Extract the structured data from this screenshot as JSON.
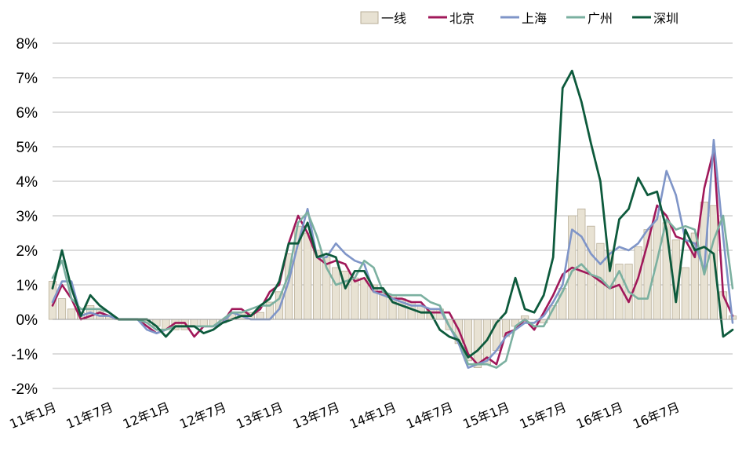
{
  "chart_data": {
    "type": "bar+line",
    "title": "",
    "xlabel": "",
    "ylabel": "",
    "ylim": [
      -2,
      8
    ],
    "y_ticks": [
      "8%",
      "7%",
      "6%",
      "5%",
      "4%",
      "3%",
      "2%",
      "1%",
      "0%",
      "-1%",
      "-2%"
    ],
    "y_tick_values": [
      8,
      7,
      6,
      5,
      4,
      3,
      2,
      1,
      0,
      -1,
      -2
    ],
    "x_tick_labels": [
      "11年1月",
      "11年7月",
      "12年1月",
      "12年7月",
      "13年1月",
      "13年7月",
      "14年1月",
      "14年7月",
      "15年1月",
      "15年7月",
      "16年1月",
      "16年7月"
    ],
    "x_tick_index": [
      0,
      6,
      12,
      18,
      24,
      30,
      36,
      42,
      48,
      54,
      60,
      66
    ],
    "grid": "horizontal",
    "legend_position": "top",
    "colors": {
      "一线": "#e8e2d3",
      "一线_edge": "#b8ae97",
      "北京": "#a0185a",
      "上海": "#7f95c8",
      "广州": "#7bb0a0",
      "深圳": "#0d5a3c"
    },
    "bar_series": {
      "name": "一线",
      "values": [
        1.1,
        0.6,
        0.3,
        0.2,
        0.4,
        0.3,
        0.1,
        0.0,
        0.0,
        0.0,
        -0.1,
        -0.2,
        -0.3,
        -0.3,
        -0.3,
        -0.2,
        -0.2,
        -0.2,
        -0.1,
        0.2,
        0.2,
        0.2,
        0.2,
        0.5,
        0.8,
        1.9,
        2.7,
        2.5,
        2.0,
        1.8,
        1.5,
        1.4,
        1.2,
        1.2,
        1.0,
        0.8,
        0.7,
        0.6,
        0.5,
        0.4,
        0.3,
        0.3,
        -0.3,
        -0.7,
        -1.2,
        -1.4,
        -1.3,
        -0.9,
        -0.5,
        -0.2,
        0.1,
        0.0,
        -0.1,
        0.4,
        0.9,
        3.0,
        3.2,
        2.7,
        2.2,
        2.0,
        1.6,
        1.6,
        2.1,
        2.6,
        3.0,
        2.8,
        2.3,
        1.5,
        2.5,
        3.4,
        3.3,
        0.8,
        0.1
      ]
    },
    "series": [
      {
        "name": "北京",
        "values": [
          0.4,
          1.0,
          0.6,
          0.0,
          0.1,
          0.2,
          0.1,
          0.0,
          0.0,
          0.0,
          -0.2,
          -0.4,
          -0.3,
          -0.1,
          -0.1,
          -0.5,
          -0.2,
          -0.2,
          -0.1,
          0.3,
          0.3,
          0.1,
          0.3,
          0.8,
          1.0,
          2.2,
          3.0,
          2.5,
          1.8,
          1.6,
          1.7,
          1.6,
          1.1,
          1.2,
          0.8,
          0.8,
          0.6,
          0.6,
          0.5,
          0.5,
          0.2,
          0.2,
          0.2,
          -0.3,
          -1.0,
          -1.3,
          -1.1,
          -1.3,
          -0.4,
          -0.3,
          0.0,
          -0.3,
          0.2,
          0.7,
          1.3,
          1.5,
          1.4,
          1.3,
          1.1,
          0.9,
          1.0,
          0.5,
          1.2,
          2.2,
          3.3,
          3.0,
          2.4,
          2.3,
          1.8,
          3.8,
          4.9,
          0.7,
          0.1
        ]
      },
      {
        "name": "上海",
        "values": [
          0.5,
          1.1,
          1.1,
          0.1,
          0.2,
          0.1,
          0.1,
          0.0,
          0.0,
          0.0,
          -0.3,
          -0.4,
          -0.3,
          -0.2,
          -0.2,
          -0.2,
          -0.2,
          -0.2,
          -0.1,
          0.2,
          0.1,
          0.0,
          0.0,
          0.0,
          0.3,
          1.1,
          2.2,
          3.2,
          1.8,
          1.8,
          2.2,
          1.9,
          1.7,
          1.6,
          0.8,
          0.7,
          0.6,
          0.5,
          0.4,
          0.4,
          0.3,
          0.3,
          -0.2,
          -0.7,
          -1.4,
          -1.3,
          -1.2,
          -0.9,
          -0.5,
          -0.3,
          -0.1,
          -0.1,
          0.1,
          0.5,
          1.0,
          2.6,
          2.4,
          1.9,
          1.6,
          1.9,
          2.1,
          2.0,
          2.2,
          2.6,
          2.9,
          4.3,
          3.6,
          2.3,
          2.2,
          1.4,
          5.2,
          2.4,
          -0.1
        ]
      },
      {
        "name": "广州",
        "values": [
          1.2,
          1.7,
          0.6,
          0.3,
          0.3,
          0.3,
          0.2,
          0.0,
          0.0,
          0.0,
          -0.1,
          -0.3,
          -0.3,
          -0.2,
          -0.2,
          -0.2,
          -0.2,
          -0.2,
          0.0,
          0.2,
          0.2,
          0.3,
          0.4,
          0.4,
          0.6,
          1.3,
          2.8,
          3.1,
          2.4,
          1.5,
          1.0,
          1.1,
          1.2,
          1.7,
          1.5,
          0.8,
          0.7,
          0.7,
          0.7,
          0.7,
          0.5,
          0.4,
          -0.2,
          -0.6,
          -1.3,
          -1.3,
          -1.3,
          -1.4,
          -1.2,
          -0.2,
          0.0,
          -0.2,
          -0.2,
          0.3,
          0.8,
          1.4,
          1.6,
          1.3,
          1.2,
          0.9,
          1.4,
          0.8,
          0.6,
          0.6,
          1.7,
          2.9,
          2.6,
          2.7,
          2.6,
          1.3,
          2.3,
          3.0,
          0.9
        ]
      },
      {
        "name": "深圳",
        "values": [
          0.9,
          2.0,
          0.9,
          0.1,
          0.7,
          0.4,
          0.2,
          0.0,
          0.0,
          0.0,
          0.0,
          -0.2,
          -0.5,
          -0.2,
          -0.2,
          -0.2,
          -0.4,
          -0.3,
          -0.1,
          0.0,
          0.1,
          0.1,
          0.4,
          0.6,
          1.1,
          2.2,
          2.2,
          2.8,
          1.8,
          1.9,
          1.8,
          0.9,
          1.4,
          1.4,
          0.9,
          0.9,
          0.5,
          0.4,
          0.3,
          0.2,
          0.2,
          -0.3,
          -0.5,
          -0.6,
          -1.1,
          -0.9,
          -0.6,
          -0.1,
          0.2,
          1.2,
          0.3,
          0.2,
          0.7,
          1.8,
          6.7,
          7.2,
          6.3,
          5.1,
          4.0,
          1.4,
          2.9,
          3.2,
          4.1,
          3.6,
          3.7,
          2.6,
          0.5,
          2.6,
          2.0,
          2.1,
          1.9,
          -0.5,
          -0.3
        ]
      }
    ]
  }
}
